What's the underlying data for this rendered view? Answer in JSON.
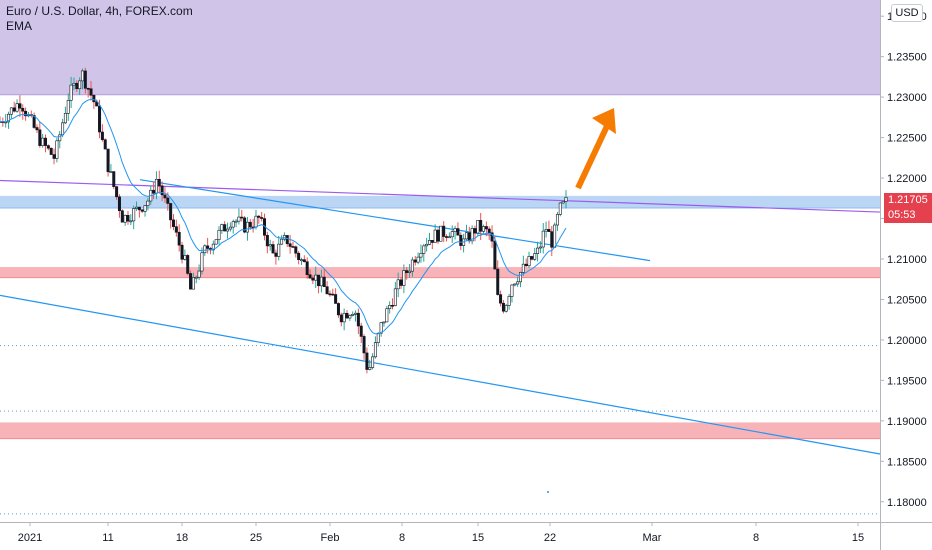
{
  "header": {
    "title": "Euro / U.S. Dollar, 4h, FOREX.com",
    "indicator": "EMA"
  },
  "currency_button": "USD",
  "last_price": "1.21705",
  "countdown": "05:53",
  "chart_data": {
    "type": "candlestick",
    "symbol": "Euro / U.S. Dollar",
    "timeframe": "4h",
    "source": "FOREX.com",
    "ylim": [
      1.1775,
      1.242
    ],
    "y_ticks": [
      "1.24000",
      "1.23500",
      "1.23000",
      "1.22500",
      "1.22000",
      "1.21500",
      "1.21000",
      "1.20500",
      "1.20000",
      "1.19500",
      "1.19000",
      "1.18500",
      "1.18000"
    ],
    "x_ticks": [
      "2021",
      "11",
      "18",
      "25",
      "Feb",
      "8",
      "15",
      "22",
      "Mar",
      "8",
      "15"
    ],
    "price_path": [
      [
        0,
        1.227
      ],
      [
        3,
        1.2295
      ],
      [
        6,
        1.2245
      ],
      [
        8,
        1.2225
      ],
      [
        10,
        1.23
      ],
      [
        12,
        1.233
      ],
      [
        14,
        1.229
      ],
      [
        15,
        1.2245
      ],
      [
        16,
        1.221
      ],
      [
        18,
        1.215
      ],
      [
        20,
        1.216
      ],
      [
        22,
        1.2175
      ],
      [
        23,
        1.22
      ],
      [
        25,
        1.215
      ],
      [
        27,
        1.21
      ],
      [
        28,
        1.206
      ],
      [
        29,
        1.2085
      ],
      [
        30,
        1.211
      ],
      [
        32,
        1.213
      ],
      [
        34,
        1.215
      ],
      [
        36,
        1.214
      ],
      [
        38,
        1.215
      ],
      [
        40,
        1.2105
      ],
      [
        42,
        1.2125
      ],
      [
        44,
        1.21
      ],
      [
        46,
        1.208
      ],
      [
        48,
        1.206
      ],
      [
        50,
        1.203
      ],
      [
        52,
        1.204
      ],
      [
        53,
        1.2
      ],
      [
        54,
        1.196
      ],
      [
        55,
        1.199
      ],
      [
        56,
        1.202
      ],
      [
        58,
        1.206
      ],
      [
        60,
        1.209
      ],
      [
        62,
        1.212
      ],
      [
        64,
        1.213
      ],
      [
        66,
        1.2135
      ],
      [
        68,
        1.212
      ],
      [
        70,
        1.214
      ],
      [
        72,
        1.213
      ],
      [
        73,
        1.205
      ],
      [
        74,
        1.204
      ],
      [
        75,
        1.207
      ],
      [
        77,
        1.209
      ],
      [
        79,
        1.211
      ],
      [
        80,
        1.214
      ],
      [
        81,
        1.212
      ],
      [
        82,
        1.216
      ],
      [
        83,
        1.217
      ]
    ],
    "zones": [
      {
        "name": "resistance-zone",
        "from": 1.2303,
        "to": 1.242,
        "color": "#d1c4e9"
      },
      {
        "name": "current-level-zone",
        "from": 1.2163,
        "to": 1.2178,
        "color": "#bbd6f5"
      },
      {
        "name": "support-zone",
        "from": 1.2077,
        "to": 1.209,
        "color": "#f7b3b8"
      },
      {
        "name": "lower-support-zone",
        "from": 1.1878,
        "to": 1.1898,
        "color": "#f7b3b8"
      }
    ],
    "dotted_levels": [
      1.1993,
      1.1912,
      1.1785
    ],
    "last_price": 1.21705,
    "colors": {
      "up": "#26a69a",
      "down": "#ef5350",
      "ema": "#2196f3",
      "trend_purple": "#9c5cf0",
      "trend_blue": "#2196f3",
      "arrow": "#f57c00"
    }
  }
}
